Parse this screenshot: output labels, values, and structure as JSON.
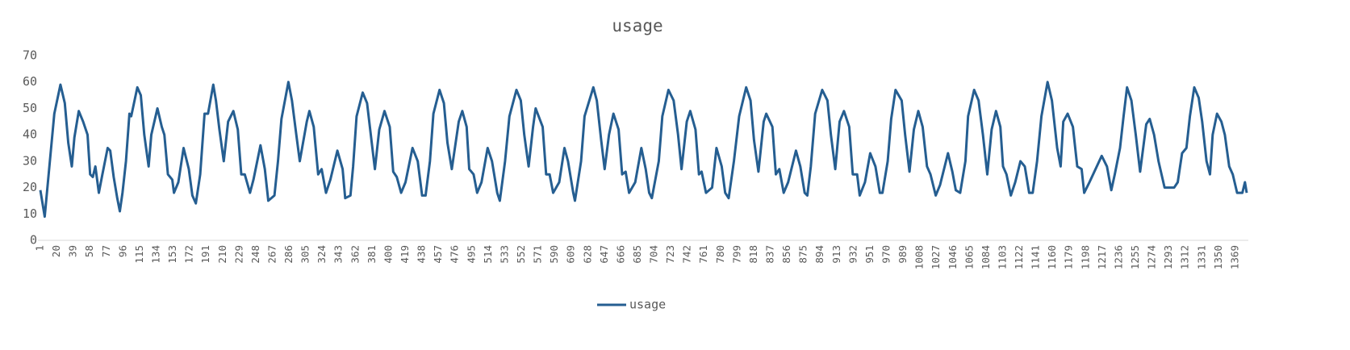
{
  "chart_data": {
    "type": "line",
    "title": "usage",
    "x": [
      1,
      6,
      17,
      24,
      29,
      33,
      37,
      40,
      45,
      50,
      55,
      58,
      61,
      64,
      68,
      72,
      78,
      81,
      85,
      89,
      92,
      95,
      99,
      103,
      105,
      112,
      116,
      120,
      125,
      128,
      135,
      140,
      143,
      147,
      152,
      154,
      159,
      165,
      171,
      175,
      179,
      184,
      189,
      193,
      199,
      202,
      206,
      211,
      216,
      222,
      227,
      231,
      235,
      241,
      245,
      253,
      258,
      262,
      269,
      273,
      277,
      285,
      289,
      294,
      298,
      306,
      309,
      314,
      319,
      323,
      328,
      333,
      341,
      347,
      350,
      356,
      359,
      363,
      370,
      375,
      380,
      384,
      389,
      395,
      401,
      405,
      409,
      414,
      419,
      427,
      433,
      438,
      442,
      447,
      451,
      458,
      463,
      467,
      472,
      480,
      484,
      489,
      492,
      497,
      501,
      506,
      513,
      518,
      524,
      527,
      533,
      538,
      546,
      551,
      555,
      560,
      565,
      568,
      576,
      580,
      584,
      588,
      595,
      601,
      605,
      611,
      613,
      620,
      624,
      634,
      638,
      643,
      647,
      652,
      657,
      663,
      667,
      671,
      675,
      682,
      689,
      694,
      698,
      701,
      709,
      713,
      720,
      726,
      731,
      735,
      741,
      745,
      751,
      755,
      758,
      763,
      770,
      775,
      781,
      785,
      789,
      795,
      801,
      809,
      814,
      818,
      823,
      829,
      832,
      839,
      843,
      847,
      852,
      857,
      866,
      871,
      876,
      879,
      883,
      888,
      896,
      902,
      906,
      911,
      916,
      921,
      927,
      931,
      936,
      939,
      945,
      951,
      957,
      962,
      965,
      971,
      975,
      980,
      987,
      991,
      996,
      1001,
      1006,
      1011,
      1016,
      1020,
      1026,
      1031,
      1040,
      1045,
      1049,
      1054,
      1060,
      1063,
      1070,
      1075,
      1080,
      1085,
      1090,
      1095,
      1100,
      1103,
      1107,
      1112,
      1117,
      1123,
      1128,
      1133,
      1137,
      1142,
      1147,
      1154,
      1159,
      1165,
      1169,
      1172,
      1177,
      1183,
      1188,
      1193,
      1196,
      1202,
      1216,
      1222,
      1227,
      1231,
      1237,
      1241,
      1245,
      1250,
      1255,
      1260,
      1267,
      1271,
      1276,
      1281,
      1288,
      1293,
      1299,
      1303,
      1308,
      1313,
      1317,
      1322,
      1327,
      1331,
      1336,
      1340,
      1343,
      1348,
      1353,
      1357,
      1362,
      1366,
      1371,
      1377,
      1380,
      1382
    ],
    "series": [
      {
        "name": "usage",
        "color": "#255e91",
        "values": [
          19,
          9,
          48,
          59,
          52,
          37,
          28,
          39,
          49,
          45,
          40,
          25,
          24,
          28,
          18,
          25,
          35,
          34,
          24,
          16,
          11,
          18,
          30,
          48,
          47,
          58,
          55,
          40,
          28,
          40,
          50,
          43,
          40,
          25,
          23,
          18,
          22,
          35,
          27,
          17,
          14,
          25,
          48,
          48,
          59,
          53,
          42,
          30,
          45,
          49,
          42,
          25,
          25,
          18,
          23,
          36,
          27,
          15,
          17,
          30,
          46,
          60,
          53,
          40,
          30,
          45,
          49,
          43,
          25,
          27,
          18,
          23,
          34,
          27,
          16,
          17,
          28,
          47,
          56,
          52,
          38,
          27,
          42,
          49,
          43,
          26,
          24,
          18,
          22,
          35,
          30,
          17,
          17,
          30,
          48,
          57,
          52,
          37,
          27,
          45,
          49,
          43,
          27,
          25,
          18,
          22,
          35,
          30,
          18,
          15,
          30,
          47,
          57,
          53,
          40,
          28,
          43,
          50,
          43,
          25,
          25,
          18,
          22,
          35,
          30,
          18,
          15,
          30,
          47,
          58,
          53,
          38,
          27,
          40,
          48,
          42,
          25,
          26,
          18,
          22,
          35,
          27,
          18,
          16,
          30,
          47,
          57,
          53,
          40,
          27,
          45,
          49,
          42,
          25,
          26,
          18,
          20,
          35,
          28,
          18,
          16,
          30,
          47,
          58,
          53,
          38,
          26,
          45,
          48,
          43,
          25,
          27,
          18,
          22,
          34,
          28,
          18,
          17,
          28,
          48,
          57,
          53,
          40,
          27,
          45,
          49,
          43,
          25,
          25,
          17,
          22,
          33,
          28,
          18,
          18,
          30,
          46,
          57,
          53,
          40,
          26,
          42,
          49,
          43,
          28,
          25,
          17,
          21,
          33,
          26,
          19,
          18,
          30,
          47,
          57,
          53,
          40,
          25,
          42,
          49,
          43,
          28,
          25,
          17,
          22,
          30,
          28,
          18,
          18,
          30,
          47,
          60,
          53,
          35,
          28,
          45,
          48,
          43,
          28,
          27,
          18,
          22,
          32,
          28,
          19,
          25,
          35,
          47,
          58,
          53,
          40,
          26,
          44,
          46,
          40,
          30,
          20,
          20,
          20,
          22,
          33,
          35,
          47,
          58,
          54,
          45,
          30,
          25,
          40,
          48,
          45,
          40,
          28,
          25,
          18,
          18,
          22,
          18
        ]
      }
    ],
    "xlim": [
      1,
      1382
    ],
    "xticks": [
      1,
      20,
      39,
      58,
      77,
      96,
      115,
      134,
      153,
      172,
      191,
      210,
      229,
      248,
      267,
      286,
      305,
      324,
      343,
      362,
      381,
      400,
      419,
      438,
      457,
      476,
      495,
      514,
      533,
      552,
      571,
      590,
      609,
      628,
      647,
      666,
      685,
      704,
      723,
      742,
      761,
      780,
      799,
      818,
      837,
      856,
      875,
      894,
      913,
      932,
      951,
      970,
      989,
      1008,
      1027,
      1046,
      1065,
      1084,
      1103,
      1122,
      1141,
      1160,
      1179,
      1198,
      1217,
      1236,
      1255,
      1274,
      1293,
      1312,
      1331,
      1350,
      1369
    ],
    "ylim": [
      0,
      70
    ],
    "yticks": [
      0,
      10,
      20,
      30,
      40,
      50,
      60,
      70
    ],
    "grid": false,
    "legend": "bottom"
  }
}
